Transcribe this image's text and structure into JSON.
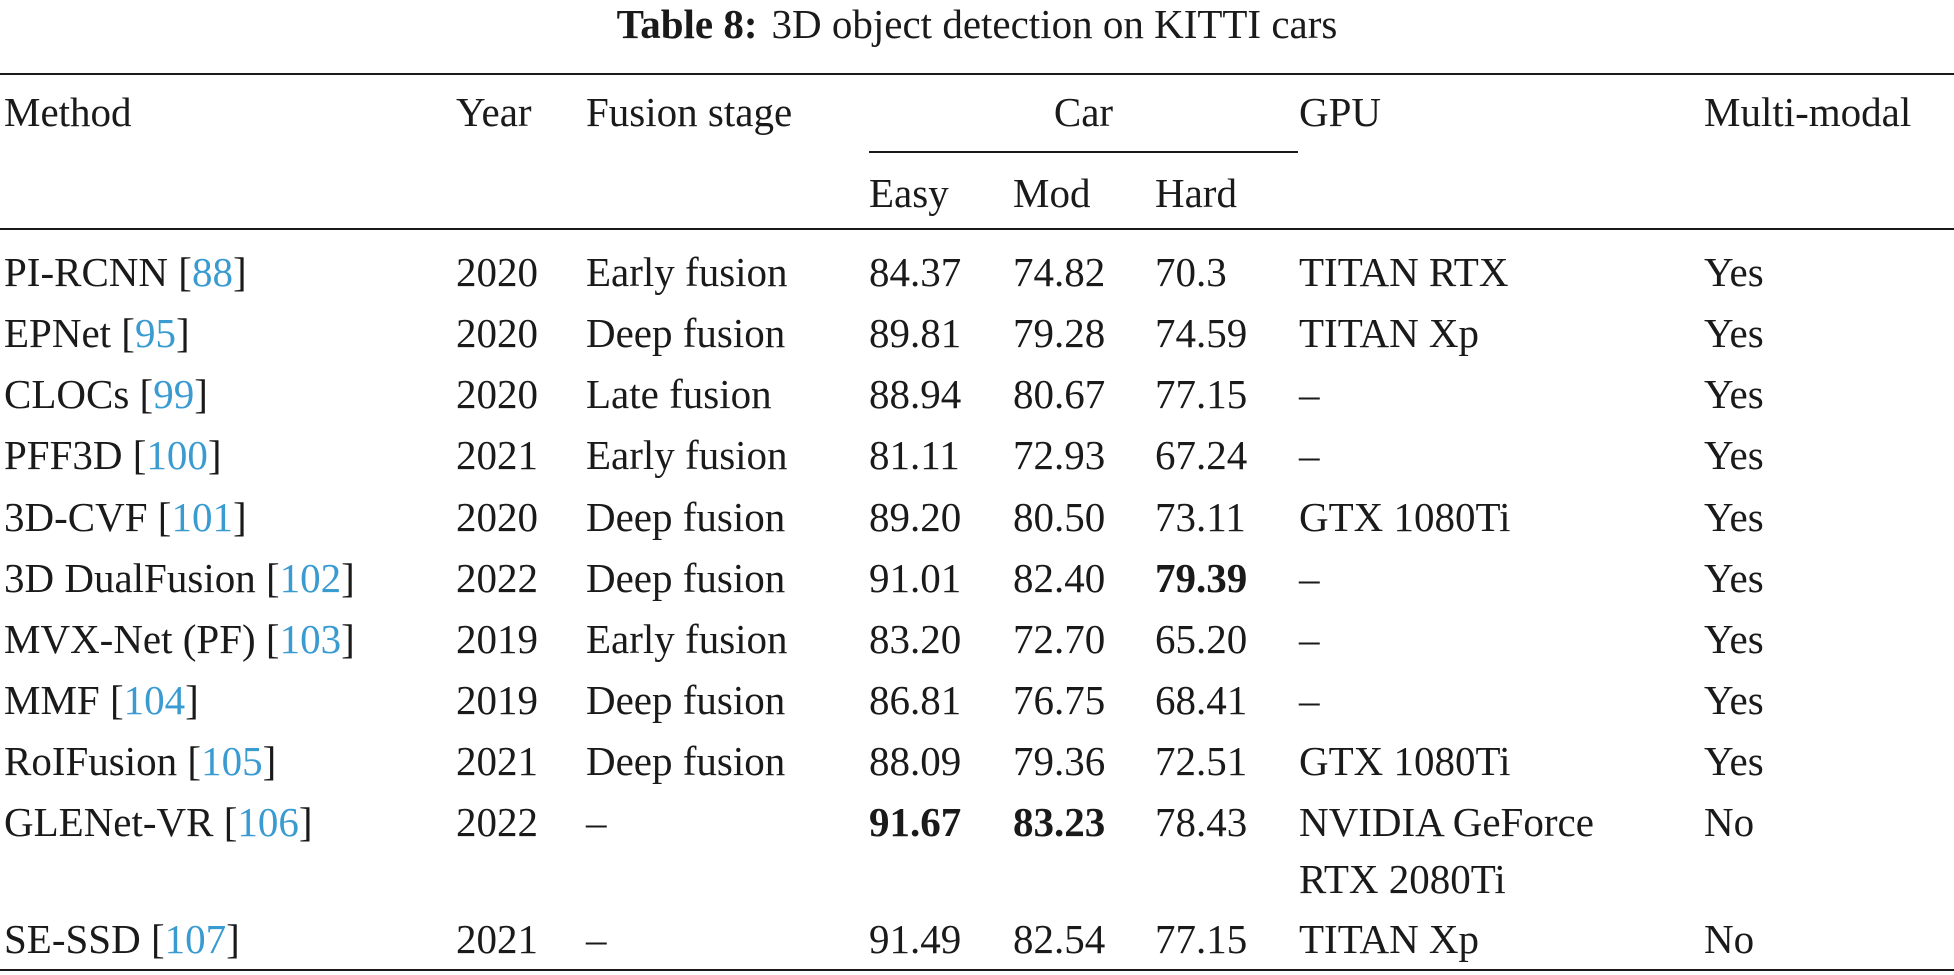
{
  "caption": {
    "label": "Table 8:",
    "text": "3D object detection on KITTI cars"
  },
  "header": {
    "method": "Method",
    "year": "Year",
    "fusion_stage": "Fusion stage",
    "car": "Car",
    "gpu": "GPU",
    "multi_modal": "Multi-modal",
    "easy": "Easy",
    "mod": "Mod",
    "hard": "Hard"
  },
  "rows": [
    {
      "method": "PI-RCNN [",
      "ref": "88",
      "close": "]",
      "year": "2020",
      "fusion": "Early fusion",
      "easy": "84.37",
      "mod": "74.82",
      "hard": "70.3",
      "gpu": "TITAN RTX",
      "mm": "Yes"
    },
    {
      "method": "EPNet [",
      "ref": "95",
      "close": "]",
      "year": "2020",
      "fusion": "Deep fusion",
      "easy": "89.81",
      "mod": "79.28",
      "hard": "74.59",
      "gpu": "TITAN Xp",
      "mm": "Yes"
    },
    {
      "method": "CLOCs [",
      "ref": "99",
      "close": "]",
      "year": "2020",
      "fusion": "Late fusion",
      "easy": "88.94",
      "mod": "80.67",
      "hard": "77.15",
      "gpu": "–",
      "mm": "Yes"
    },
    {
      "method": "PFF3D [",
      "ref": "100",
      "close": "]",
      "year": "2021",
      "fusion": "Early fusion",
      "easy": "81.11",
      "mod": "72.93",
      "hard": "67.24",
      "gpu": "–",
      "mm": "Yes"
    },
    {
      "method": "3D-CVF [",
      "ref": "101",
      "close": "]",
      "year": "2020",
      "fusion": "Deep fusion",
      "easy": "89.20",
      "mod": "80.50",
      "hard": "73.11",
      "gpu": "GTX 1080Ti",
      "mm": "Yes"
    },
    {
      "method": "3D DualFusion [",
      "ref": "102",
      "close": "]",
      "year": "2022",
      "fusion": "Deep fusion",
      "easy": "91.01",
      "mod": "82.40",
      "hard": "79.39",
      "gpu": "–",
      "mm": "Yes"
    },
    {
      "method": "MVX-Net (PF) [",
      "ref": "103",
      "close": "]",
      "year": "2019",
      "fusion": "Early fusion",
      "easy": "83.20",
      "mod": "72.70",
      "hard": "65.20",
      "gpu": "–",
      "mm": "Yes"
    },
    {
      "method": "MMF [",
      "ref": "104",
      "close": "]",
      "year": "2019",
      "fusion": "Deep fusion",
      "easy": "86.81",
      "mod": "76.75",
      "hard": "68.41",
      "gpu": "–",
      "mm": "Yes"
    },
    {
      "method": "RoIFusion [",
      "ref": "105",
      "close": "]",
      "year": "2021",
      "fusion": "Deep fusion",
      "easy": "88.09",
      "mod": "79.36",
      "hard": "72.51",
      "gpu": "GTX 1080Ti",
      "mm": "Yes"
    },
    {
      "method": "GLENet-VR [",
      "ref": "106",
      "close": "]",
      "year": "2022",
      "fusion": "–",
      "easy": "91.67",
      "mod": "83.23",
      "hard": "78.43",
      "gpu": "NVIDIA GeForce",
      "gpu2": "RTX 2080Ti",
      "mm": "No"
    },
    {
      "method": "SE-SSD [",
      "ref": "107",
      "close": "]",
      "year": "2021",
      "fusion": "–",
      "easy": "91.49",
      "mod": "82.54",
      "hard": "77.15",
      "gpu": "TITAN Xp",
      "mm": "No"
    }
  ]
}
